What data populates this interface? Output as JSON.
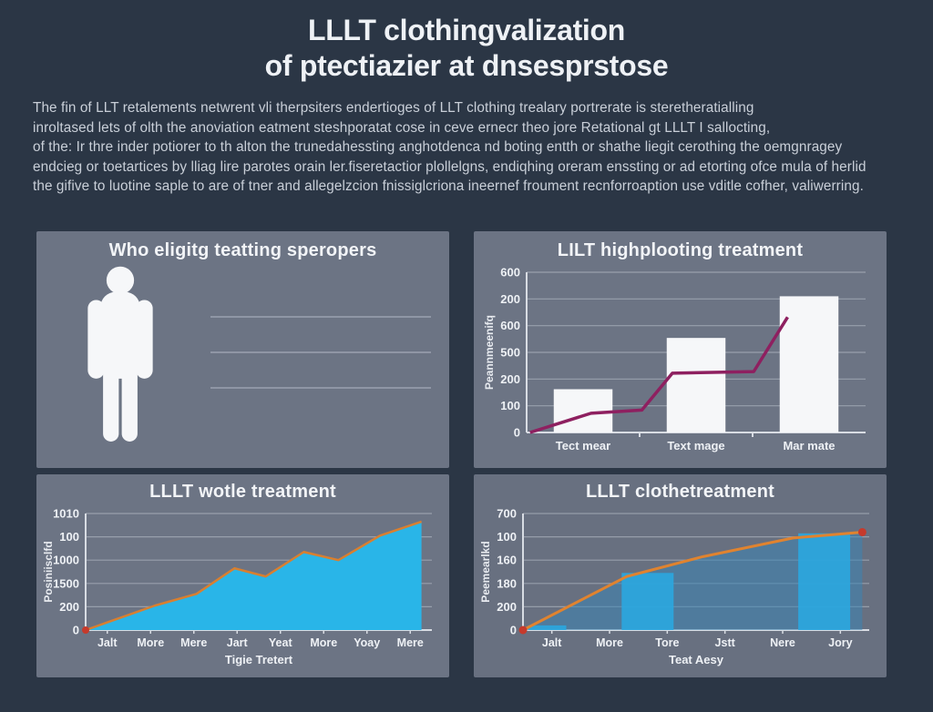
{
  "page": {
    "title_line1": "LLLT clothingvalization",
    "title_line2": "of ptectiazier at dnsesprstose",
    "intro_lines": [
      "The fin of LLT retalements netwrent vli therpsiters endertioges of LLT clothing trealary portrerate is steretheratialling",
      "inroltased lets of olth the anoviation eatment steshporatat cose in ceve ernecr theo jore Retational gt LLLT I sallocting,",
      "of the: Ir thre inder potiorer to th alton the trunedahessting anghotdenca nd boting entth or shathe liegit cerothing the oemgnragey",
      "endcieg or toetartices by lliag lire parotes orain ler.fiseretactior plollelgns, endiqhing oreram enssting or ad etorting ofce mula of herlid",
      "the gifive to luotine saple to are of tner and allegelzcion fnissiglcriona ineernef froument recnforroaption use vditle cofher, valiwerring."
    ]
  },
  "panels": {
    "eligibility": {
      "title": "Who eligitg teatting speropers",
      "figure_icon": "person-silhouette-icon",
      "placeholder_line_count": 3
    }
  },
  "colors": {
    "background": "#2b3645",
    "panel": "#6c7484",
    "white_bar": "#f6f7f9",
    "magenta_line": "#8e2060",
    "cyan_area": "#29b5e8",
    "orange_line": "#d97f2f",
    "blue_bar": "#2aa7e0",
    "red_marker": "#c63a2c",
    "grid_line": "#bcc3cd"
  },
  "chart_data": [
    {
      "id": "highplooting",
      "type": "bar",
      "title": "LILT highplooting treatment",
      "ylabel": "Peannmeenifq",
      "xlabel": "",
      "legend": "none",
      "grid": true,
      "y_ticks_top_to_bottom": [
        "600",
        "200",
        "600",
        "500",
        "200",
        "100",
        "0"
      ],
      "categories": [
        "Tect mear",
        "Text mage",
        "Mar mate"
      ],
      "bar_values_frac_of_axis": [
        0.27,
        0.59,
        0.85
      ],
      "line_overlay_points_frac": [
        [
          0.01,
          0.0
        ],
        [
          0.19,
          0.12
        ],
        [
          0.34,
          0.14
        ],
        [
          0.43,
          0.37
        ],
        [
          0.67,
          0.38
        ],
        [
          0.77,
          0.72
        ]
      ],
      "bar_color": "#f6f7f9",
      "line_color": "#8e2060"
    },
    {
      "id": "wotle",
      "type": "area",
      "title": "LLLT wotle treatment",
      "ylabel": "Posiniisclfd",
      "xlabel": "Tigie Tretert",
      "legend": "none",
      "grid": true,
      "y_ticks_top_to_bottom": [
        "1010",
        "100",
        "1000",
        "1500",
        "200",
        "0"
      ],
      "x_tick_labels": [
        "Jalt",
        "More",
        "Mere",
        "Jart",
        "Yeat",
        "More",
        "Yoay",
        "Mere"
      ],
      "area_points_frac": [
        [
          0.0,
          0.0
        ],
        [
          0.2,
          0.21
        ],
        [
          0.32,
          0.31
        ],
        [
          0.43,
          0.53
        ],
        [
          0.52,
          0.46
        ],
        [
          0.63,
          0.67
        ],
        [
          0.73,
          0.6
        ],
        [
          0.85,
          0.81
        ],
        [
          0.97,
          0.93
        ]
      ],
      "area_color": "#29b5e8",
      "line_color": "#d97f2f",
      "start_marker_color": "#c63a2c"
    },
    {
      "id": "clothe",
      "type": "bar-area-line",
      "title": "LLLT clothetreatment",
      "ylabel": "Peemearlkd",
      "xlabel": "Teat Aesy",
      "legend": "none",
      "grid": true,
      "y_ticks_top_to_bottom": [
        "700",
        "100",
        "160",
        "180",
        "200",
        "0"
      ],
      "x_tick_labels": [
        "Jalt",
        "More",
        "Tore",
        "Jstt",
        "Nere",
        "Jory"
      ],
      "bars_frac": [
        {
          "x": 0.07,
          "w": 0.11,
          "h": 0.04
        },
        {
          "x": 0.36,
          "w": 0.15,
          "h": 0.49
        },
        {
          "x": 0.87,
          "w": 0.15,
          "h": 0.83
        }
      ],
      "line_points_frac": [
        [
          0.0,
          0.0
        ],
        [
          0.3,
          0.46
        ],
        [
          0.52,
          0.63
        ],
        [
          0.78,
          0.79
        ],
        [
          0.98,
          0.84
        ]
      ],
      "bar_color": "#2aa7e0",
      "area_fill_color": "#3b85b5",
      "line_color": "#e0832f",
      "marker_color": "#c63a2c"
    }
  ]
}
